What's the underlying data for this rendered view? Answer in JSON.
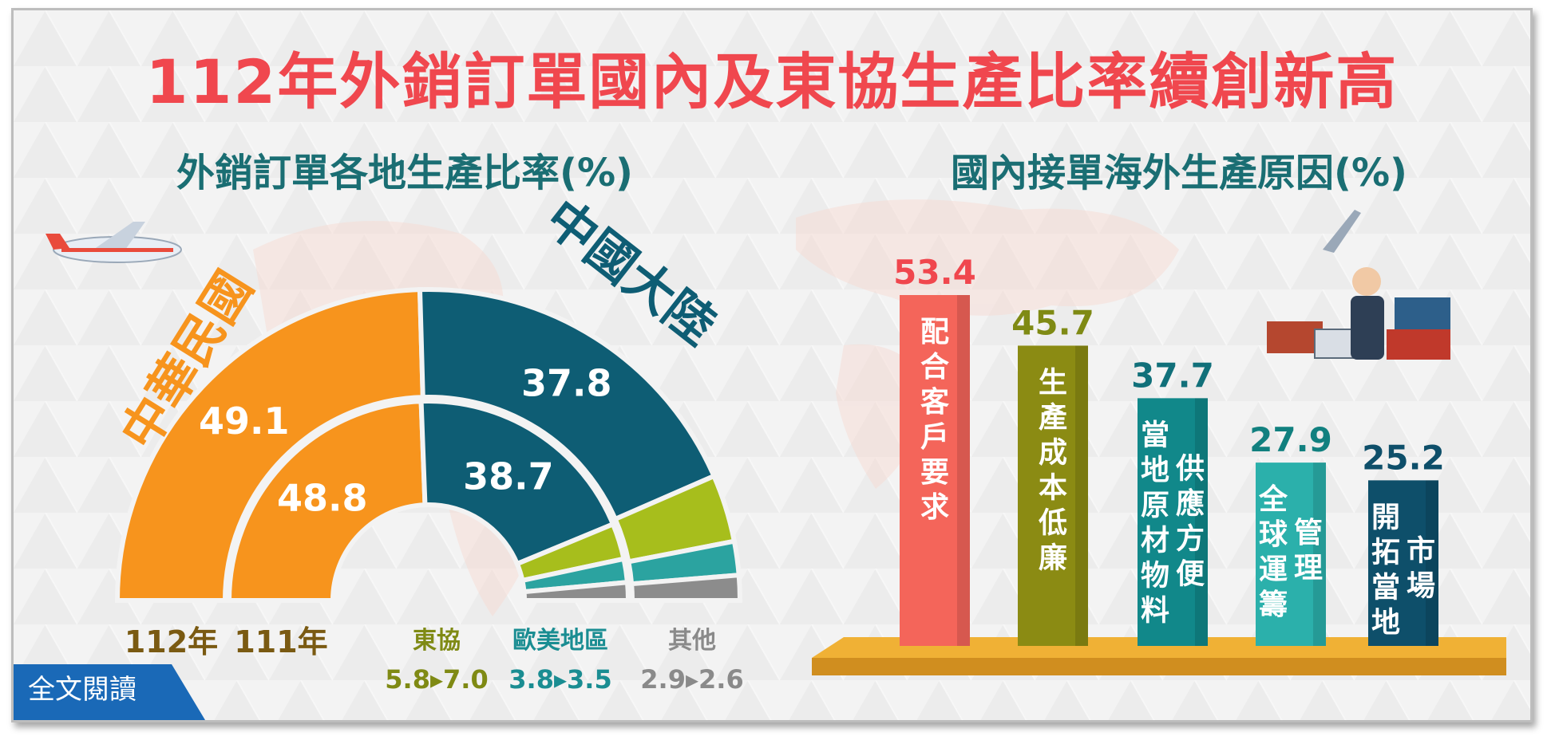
{
  "title": "112年外銷訂單國內及東協生產比率續創新高",
  "read_button": "全文閱讀",
  "chart_data": [
    {
      "type": "pie",
      "title": "外銷訂單各地生產比率(%)",
      "region_labels": {
        "taiwan": "中華民國",
        "china": "中國大陸"
      },
      "rings": [
        {
          "name": "112年",
          "values": {
            "taiwan": 49.1,
            "china": 37.8,
            "asean": 7.0,
            "euro_us": 3.5,
            "other": 2.6
          }
        },
        {
          "name": "111年",
          "values": {
            "taiwan": 48.8,
            "china": 38.7,
            "asean": 5.8,
            "euro_us": 3.8,
            "other": 2.9
          }
        }
      ],
      "small_labels": [
        {
          "key": "asean",
          "name": "東協",
          "change": "5.8▸7.0",
          "color": "#7f8a14"
        },
        {
          "key": "euro_us",
          "name": "歐美地區",
          "change": "3.8▸3.5",
          "color": "#1a8d92"
        },
        {
          "key": "other",
          "name": "其他",
          "change": "2.9▸2.6",
          "color": "#8a8a8a"
        }
      ],
      "colors": {
        "taiwan": "#f7941d",
        "china": "#0e5d74",
        "asean": "#a7be1c",
        "euro_us": "#2ba3a0",
        "other": "#8c8c8c"
      }
    },
    {
      "type": "bar",
      "title": "國內接單海外生產原因(%)",
      "categories": [
        "配合客戶要求",
        "生產成本低廉",
        "當地原材物料供應方便",
        "全球運籌管理",
        "開拓當地市場"
      ],
      "values": [
        53.4,
        45.7,
        37.7,
        27.9,
        25.2
      ],
      "bar_labels": [
        [
          "配合客戶要求"
        ],
        [
          "生產成本低廉"
        ],
        [
          "當地原材物料",
          "供應方便"
        ],
        [
          "全球運籌",
          "管理"
        ],
        [
          "開拓當地",
          "市場"
        ]
      ],
      "colors": [
        "#f4655a",
        "#8b8b13",
        "#11888a",
        "#2bb0ab",
        "#0e4f6a"
      ],
      "value_colors": [
        "#f0474e",
        "#7f8a14",
        "#11707a",
        "#11807f",
        "#0e4f6a"
      ]
    }
  ]
}
